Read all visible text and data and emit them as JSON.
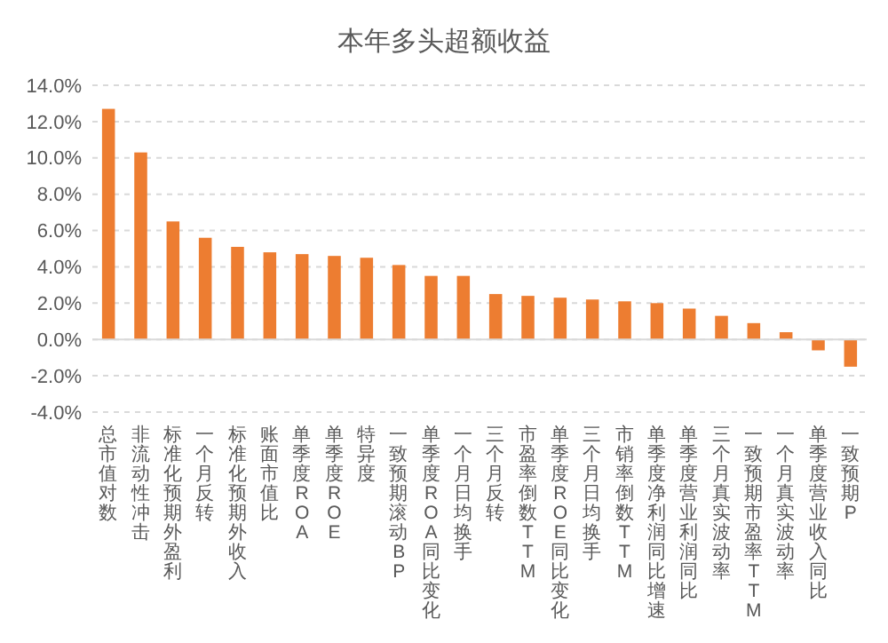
{
  "chart_data": {
    "type": "bar",
    "title": "本年多头超额收益",
    "categories": [
      "总市值对数",
      "非流动性冲击",
      "标准化预期外盈利",
      "一个月反转",
      "标准化预期外收入",
      "账面市值比",
      "单季度ROA",
      "单季度ROE",
      "特异度",
      "一致预期滚动BP",
      "单季度ROA同比变化",
      "一个月日均换手",
      "三个月反转",
      "市盈率倒数TTM",
      "单季度ROE同比变化",
      "三个月日均换手",
      "市销率倒数TTM",
      "单季度净利润同比增速",
      "单季度营业利润同比",
      "三个月真实波动率",
      "一致预期市盈率TTM",
      "一个月真实波动率",
      "单季度营业收入同比",
      "一致预期P"
    ],
    "values": [
      12.7,
      10.3,
      6.5,
      5.6,
      5.1,
      4.8,
      4.7,
      4.6,
      4.5,
      4.1,
      3.5,
      3.5,
      2.5,
      2.4,
      2.3,
      2.2,
      2.1,
      2.0,
      1.7,
      1.3,
      0.9,
      0.4,
      -0.6,
      -1.5
    ],
    "color": "#ed7d31",
    "ylim": [
      -4,
      14
    ],
    "yticks": [
      {
        "value": -4,
        "label": "-4.0%"
      },
      {
        "value": -2,
        "label": "-2.0%"
      },
      {
        "value": 0,
        "label": "0.0%"
      },
      {
        "value": 2,
        "label": "2.0%"
      },
      {
        "value": 4,
        "label": "4.0%"
      },
      {
        "value": 6,
        "label": "6.0%"
      },
      {
        "value": 8,
        "label": "8.0%"
      },
      {
        "value": 10,
        "label": "10.0%"
      },
      {
        "value": 12,
        "label": "12.0%"
      },
      {
        "value": 14,
        "label": "14.0%"
      }
    ],
    "grid": "y"
  }
}
